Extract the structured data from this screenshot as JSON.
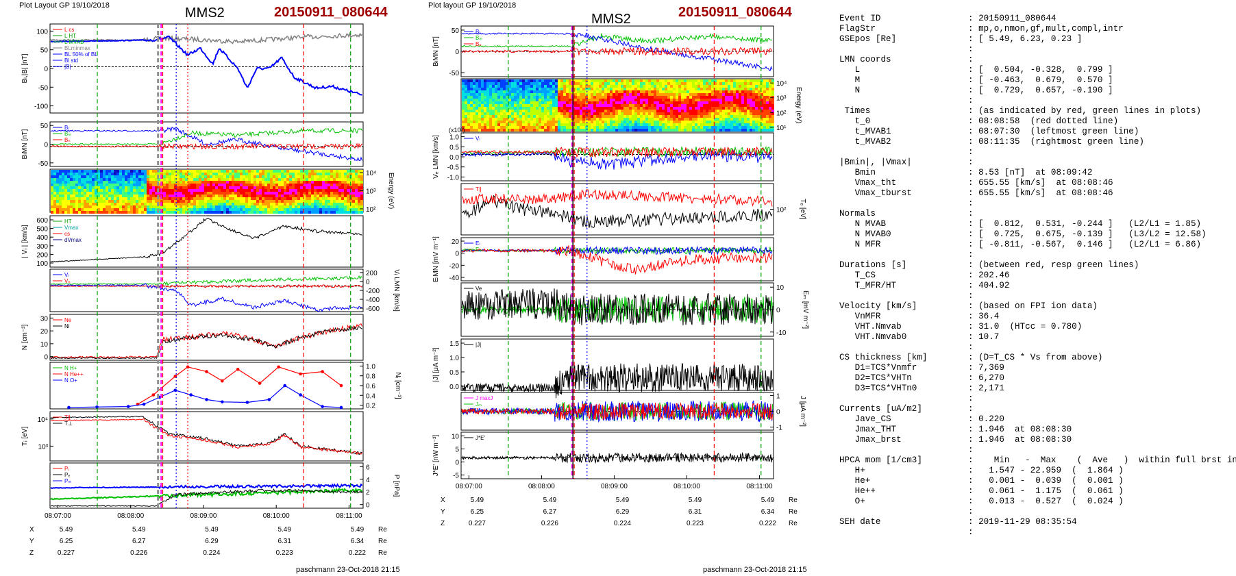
{
  "left": {
    "layout_label": "Plot Layout GP 19/10/2018",
    "spacecraft": "MMS2",
    "event": "20150911_080644",
    "footer": "paschmann 23-Oct-2018 21:15",
    "time_ticks": [
      "08:07:00",
      "08:08:00",
      "08:09:00",
      "08:10:00",
      "08:11:00"
    ],
    "positions": {
      "X": {
        "label": "X",
        "values": [
          "5.49",
          "5.49",
          "5.49",
          "5.49",
          "5.49"
        ],
        "unit": "Re"
      },
      "Y": {
        "label": "Y",
        "values": [
          "6.25",
          "6.27",
          "6.29",
          "6.31",
          "6.34"
        ],
        "unit": "Re"
      },
      "Z": {
        "label": "Z",
        "values": [
          "0.227",
          "0.226",
          "0.224",
          "0.223",
          "0.222"
        ],
        "unit": "Re"
      }
    },
    "panels": [
      {
        "ylabel": "Bₗ,|B| [nT]",
        "yticks": [
          "100",
          "50",
          "0",
          "-50",
          "-100"
        ],
        "legend": [
          "L cs",
          "L HT",
          "L MVAB",
          "BLminmax",
          "BL 50% of BL",
          "Bl std",
          "|B|"
        ]
      },
      {
        "ylabel": "BₗMN [nT]",
        "yticks": [
          "50",
          "0",
          "-50"
        ],
        "legend": [
          "Bₗ",
          "Bₘ",
          "Bₙ"
        ]
      },
      {
        "ylabel": "Energy (eV)",
        "yticks_right": [
          "10⁴",
          "10³",
          "10²"
        ]
      },
      {
        "ylabel": "| Vᵢ | [km/s]",
        "yticks": [
          "600",
          "500",
          "400",
          "300",
          "200",
          "100"
        ],
        "legend": [
          "HT",
          "Vmax",
          "cs",
          "dVmax"
        ]
      },
      {
        "ylabel": "Vᵢ LMN [km/s]",
        "yticks_right": [
          "200",
          "0",
          "-200",
          "-400",
          "-600"
        ],
        "legend": [
          "Vₗ",
          "Vₙ"
        ]
      },
      {
        "ylabel": "N [cm⁻³]",
        "yticks": [
          "30",
          "20",
          "10",
          "0"
        ],
        "legend": [
          "Ne",
          "Ni"
        ]
      },
      {
        "ylabel": "Nᵢ [cm⁻³]",
        "yticks_right": [
          "1.0",
          "0.8",
          "0.6",
          "0.4",
          "0.2"
        ],
        "legend": [
          "N H+",
          "N He++",
          "N O+"
        ]
      },
      {
        "ylabel": "Tᵢ [eV]",
        "yticks": [
          "10⁴",
          "10³"
        ],
        "legend": [
          "T∥",
          "T⊥"
        ]
      },
      {
        "ylabel": "P [nPa]",
        "yticks_right": [
          "6",
          "4",
          "2",
          "0"
        ],
        "legend": [
          "Pᵢ",
          "Pₑ",
          "Pₘ"
        ]
      }
    ]
  },
  "middle": {
    "layout_label": "Plot layout GP 19/10/2018",
    "spacecraft": "MMS2",
    "event": "20150911_080644",
    "footer": "paschmann 23-Oct-2018 21:15",
    "time_ticks": [
      "08:07:00",
      "08:08:00",
      "08:09:00",
      "08:10:00",
      "08:11:00"
    ],
    "positions": {
      "X": {
        "label": "X",
        "values": [
          "5.49",
          "5.49",
          "5.49",
          "5.49",
          "5.49"
        ],
        "unit": "Re"
      },
      "Y": {
        "label": "Y",
        "values": [
          "6.25",
          "6.27",
          "6.29",
          "6.31",
          "6.34"
        ],
        "unit": "Re"
      },
      "Z": {
        "label": "Z",
        "values": [
          "0.227",
          "0.226",
          "0.224",
          "0.223",
          "0.222"
        ],
        "unit": "Re"
      }
    },
    "panels": [
      {
        "ylabel": "BₗMN [nT]",
        "yticks": [
          "50",
          "0",
          "-50"
        ],
        "legend": [
          "Bₗ",
          "Bₘ",
          "Bₙ"
        ]
      },
      {
        "ylabel": "Energy (eV)",
        "yticks_right": [
          "10⁴",
          "10³",
          "10²",
          "10¹"
        ]
      },
      {
        "ylabel": "Vₑ LMN [km/s]",
        "yticks": [
          "1.0",
          "0.5",
          "0.0",
          "-0.5",
          "-1.0"
        ],
        "legend": [
          "Vₗ"
        ],
        "scale": "(x10³)"
      },
      {
        "ylabel": "Tₑ [eV]",
        "yticks_right": [
          "10²"
        ],
        "legend": [
          "T∥"
        ]
      },
      {
        "ylabel": "EₗMN [mV m⁻¹]",
        "yticks": [
          "20",
          "0",
          "-20",
          "-40"
        ],
        "legend": [
          "Eₗ",
          "Eₘ"
        ]
      },
      {
        "ylabel": "Eₘ [mV m⁻²]",
        "yticks_right": [
          "10",
          "0",
          "-10"
        ],
        "legend": [
          "Ve"
        ]
      },
      {
        "ylabel": "|J| [μA m⁻²]",
        "yticks": [
          "1.5",
          "1.0",
          "0.5",
          "0.0"
        ],
        "legend": [
          "|J|"
        ]
      },
      {
        "ylabel": "J [μA m⁻²]",
        "yticks_right": [
          "1",
          "0",
          "-1"
        ],
        "legend": [
          "J maxJ",
          "Jₘ",
          "Jₙ"
        ]
      },
      {
        "ylabel": "J*E' [nW m⁻³]",
        "yticks": [
          "10",
          "5",
          "0",
          "-5"
        ],
        "legend": [
          "J*E'"
        ]
      }
    ]
  },
  "info": [
    {
      "k": "Event ID",
      "v": ": 20150911_080644"
    },
    {
      "k": "FlagStr",
      "v": ": mp,o,nmon,gf,mult,compl,intr"
    },
    {
      "k": "GSEpos [Re]",
      "v": ": [ 5.49, 6.23, 0.23 ]"
    },
    {
      "k": "",
      "v": ":"
    },
    {
      "k": "LMN coords",
      "v": ":"
    },
    {
      "k": "   L",
      "v": ": [  0.504, -0.328,  0.799 ]"
    },
    {
      "k": "   M",
      "v": ": [ -0.463,  0.679,  0.570 ]"
    },
    {
      "k": "   N",
      "v": ": [  0.729,  0.657, -0.190 ]"
    },
    {
      "k": "",
      "v": ":"
    },
    {
      "k": " Times",
      "v": ": (as indicated by red, green lines in plots)"
    },
    {
      "k": "   t_0",
      "v": ": 08:08:58  (red dotted line)"
    },
    {
      "k": "   t_MVAB1",
      "v": ": 08:07:30  (leftmost green line)"
    },
    {
      "k": "   t_MVAB2",
      "v": ": 08:11:35  (rightmost green line)"
    },
    {
      "k": "",
      "v": ":"
    },
    {
      "k": "|Bmin|, |Vmax|",
      "v": ":"
    },
    {
      "k": "   Bmin",
      "v": ": 8.53 [nT]  at 08:09:42"
    },
    {
      "k": "   Vmax_tht",
      "v": ": 655.55 [km/s]  at 08:08:46"
    },
    {
      "k": "   Vmax_tburst",
      "v": ": 655.55 [km/s]  at 08:08:46"
    },
    {
      "k": "",
      "v": ":"
    },
    {
      "k": "Normals",
      "v": ":"
    },
    {
      "k": "   N MVAB",
      "v": ": [  0.812,  0.531, -0.244 ]   (L2/L1 = 1.85)"
    },
    {
      "k": "   N MVAB0",
      "v": ": [  0.725,  0.675, -0.139 ]   (L3/L2 = 12.58)"
    },
    {
      "k": "   N MFR",
      "v": ": [ -0.811, -0.567,  0.146 ]   (L2/L1 = 6.86)"
    },
    {
      "k": "",
      "v": ":"
    },
    {
      "k": "Durations [s]",
      "v": ": (between red, resp green lines)"
    },
    {
      "k": "   T_CS",
      "v": ": 202.46"
    },
    {
      "k": "   T_MFR/HT",
      "v": ": 404.92"
    },
    {
      "k": "",
      "v": ":"
    },
    {
      "k": "Velocity [km/s]",
      "v": ": (based on FPI ion data)"
    },
    {
      "k": "   VnMFR",
      "v": ": 36.4"
    },
    {
      "k": "   VHT.Nmvab",
      "v": ": 31.0  (HTcc = 0.780)"
    },
    {
      "k": "   VHT.Nmvab0",
      "v": ": 10.7"
    },
    {
      "k": "",
      "v": ":"
    },
    {
      "k": "CS thickness [km]",
      "v": ": (D=T_CS * Vs from above)"
    },
    {
      "k": "   D1=TCS*Vnmfr",
      "v": ": 7,369"
    },
    {
      "k": "   D2=TCS*VHTn",
      "v": ": 6,270"
    },
    {
      "k": "   D3=TCS*VHTn0",
      "v": ": 2,171"
    },
    {
      "k": "",
      "v": ":"
    },
    {
      "k": "Currents [uA/m2]",
      "v": ":"
    },
    {
      "k": "   Jave_CS",
      "v": ": 0.220"
    },
    {
      "k": "   Jmax_THT",
      "v": ": 1.946  at 08:08:30"
    },
    {
      "k": "   Jmax_brst",
      "v": ": 1.946  at 08:08:30"
    },
    {
      "k": "",
      "v": ":"
    },
    {
      "k": "HPCA mom [1/cm3]",
      "v": ":    Min   -  Max    (  Ave   )  within full brst int"
    },
    {
      "k": "   H+",
      "v": ":   1.547 - 22.959  (  1.864 )"
    },
    {
      "k": "   He+",
      "v": ":   0.001 -  0.039  (  0.001 )"
    },
    {
      "k": "   He++",
      "v": ":   0.061 -  1.175  (  0.061 )"
    },
    {
      "k": "   O+",
      "v": ":   0.013 -  0.527  (  0.024 )"
    },
    {
      "k": "",
      "v": ":"
    },
    {
      "k": "SEH date",
      "v": ": 2019-11-29 08:35:54"
    },
    {
      "k": "",
      "v": ":"
    }
  ],
  "chart_data": [
    {
      "type": "line",
      "title": "MMS2 20150911_080644",
      "xlabel": "",
      "x_ticks": [
        "08:07:00",
        "08:08:00",
        "08:09:00",
        "08:10:00",
        "08:11:00"
      ],
      "xlim": [
        "08:06:44",
        "08:11:05"
      ],
      "series": [
        {
          "name": "|B|",
          "panel": "Bₗ,|B| [nT]",
          "x": [
            "08:06:44",
            "08:07:30",
            "08:08:00",
            "08:08:20",
            "08:08:40",
            "08:09:00",
            "08:09:30",
            "08:10:00",
            "08:10:30",
            "08:11:05"
          ],
          "values": [
            55,
            58,
            57,
            64,
            62,
            50,
            58,
            60,
            56,
            58
          ]
        },
        {
          "name": "Bₗ",
          "panel": "Bₗ,|B| [nT]",
          "x": [
            "08:06:44",
            "08:07:30",
            "08:08:00",
            "08:08:20",
            "08:08:40",
            "08:09:00",
            "08:09:20",
            "08:09:42",
            "08:10:00",
            "08:10:30",
            "08:11:05"
          ],
          "values": [
            52,
            55,
            55,
            62,
            40,
            20,
            30,
            -55,
            0,
            -25,
            -65
          ]
        },
        {
          "name": "|Vᵢ|",
          "panel": "| Vᵢ | [km/s]",
          "x": [
            "08:06:44",
            "08:07:30",
            "08:08:00",
            "08:08:30",
            "08:08:46",
            "08:09:30",
            "08:10:00",
            "08:10:30",
            "08:11:05"
          ],
          "values": [
            80,
            120,
            150,
            280,
            655,
            480,
            540,
            430,
            420
          ]
        },
        {
          "name": "Ne",
          "panel": "N [cm⁻³]",
          "x": [
            "08:06:44",
            "08:08:00",
            "08:08:28",
            "08:08:30",
            "08:09:00",
            "08:09:30",
            "08:10:00",
            "08:10:30",
            "08:11:05"
          ],
          "values": [
            1,
            1.5,
            2,
            15,
            18,
            16,
            12,
            18,
            22
          ]
        },
        {
          "name": "N He++",
          "panel": "Nᵢ [cm⁻³]",
          "x": [
            "08:08:00",
            "08:08:20",
            "08:08:40",
            "08:09:00",
            "08:09:20",
            "08:09:40",
            "08:10:00",
            "08:10:20",
            "08:10:40",
            "08:11:00"
          ],
          "values": [
            0.08,
            0.3,
            0.85,
            0.7,
            0.9,
            0.6,
            0.95,
            0.7,
            0.85,
            0.55
          ]
        },
        {
          "name": "N O+",
          "panel": "Nᵢ [cm⁻³]",
          "x": [
            "08:07:30",
            "08:08:00",
            "08:08:20",
            "08:08:40",
            "08:09:00",
            "08:09:30",
            "08:10:00",
            "08:10:20",
            "08:10:40",
            "08:11:00"
          ],
          "values": [
            0.05,
            0.08,
            0.3,
            0.2,
            0.15,
            0.12,
            0.1,
            0.5,
            0.2,
            0.1
          ]
        },
        {
          "name": "|J|",
          "panel": "|J| [μA m⁻²]",
          "x": [
            "08:06:44",
            "08:08:00",
            "08:08:30",
            "08:09:00",
            "08:09:30",
            "08:10:00",
            "08:10:30",
            "08:11:05"
          ],
          "values": [
            0,
            0.02,
            1.946,
            0.5,
            0.7,
            0.9,
            0.5,
            0.4
          ]
        }
      ]
    }
  ]
}
